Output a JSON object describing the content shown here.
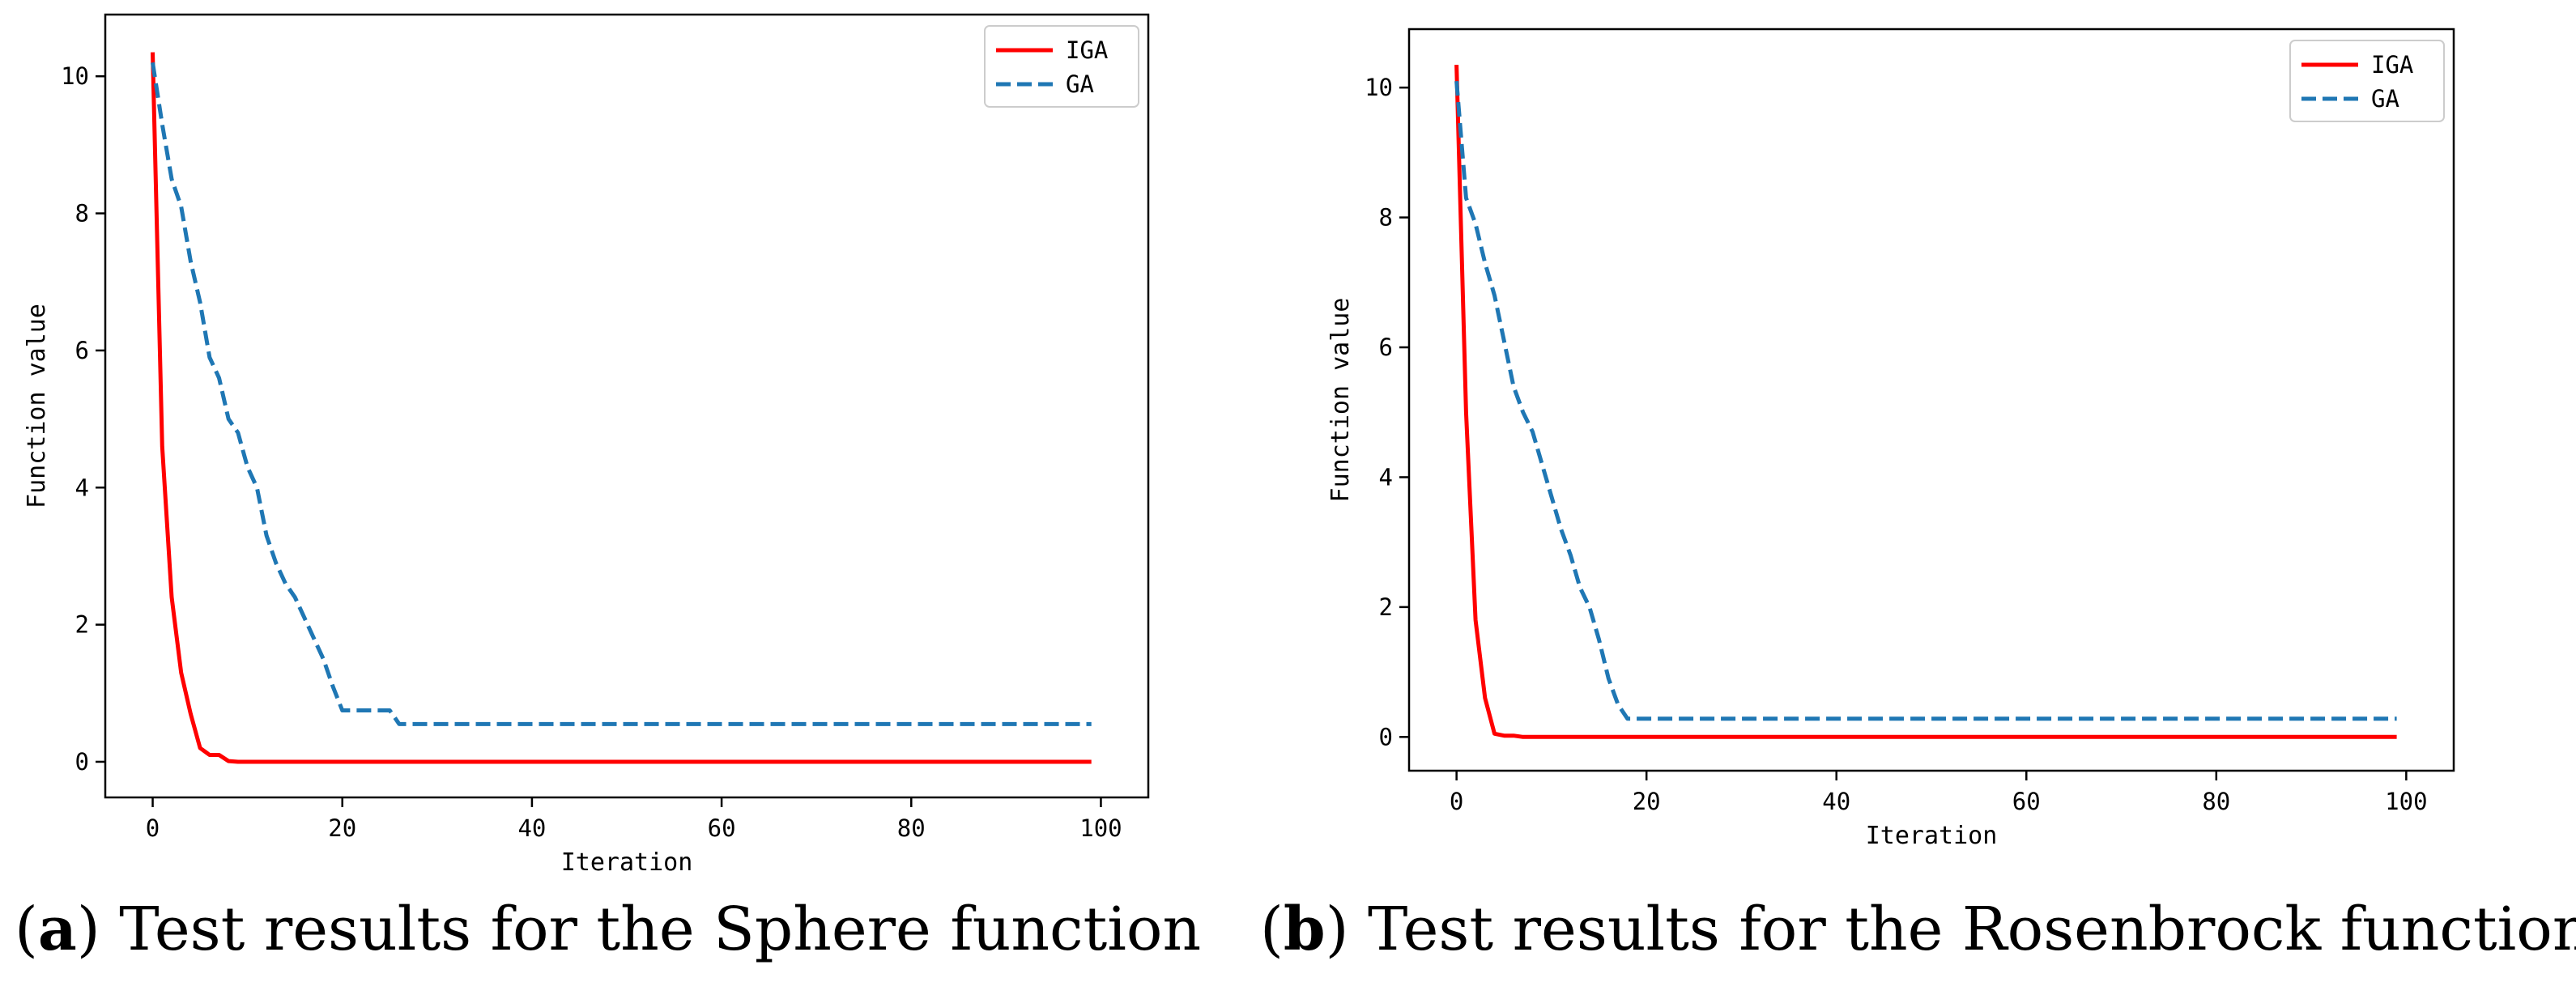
{
  "chart_data": [
    {
      "type": "line",
      "panel_label": "a",
      "caption": "Test results for the Sphere function",
      "title": "",
      "xlabel": "Iteration",
      "ylabel": "Function value",
      "xlim": [
        -5,
        105
      ],
      "ylim": [
        -0.52,
        10.9
      ],
      "xticks": [
        0,
        20,
        40,
        60,
        80,
        100
      ],
      "yticks": [
        0,
        2,
        4,
        6,
        8,
        10
      ],
      "legend_position": "top-right",
      "series": [
        {
          "name": "IGA",
          "color": "#ff0000",
          "style": "solid",
          "x": [
            0,
            1,
            2,
            3,
            4,
            5,
            6,
            7,
            8,
            9,
            99
          ],
          "values": [
            10.35,
            4.6,
            2.4,
            1.3,
            0.7,
            0.2,
            0.1,
            0.1,
            0.01,
            0.0,
            0.0
          ]
        },
        {
          "name": "GA",
          "color": "#1f77b4",
          "style": "dashed",
          "x": [
            0,
            1,
            2,
            3,
            4,
            5,
            6,
            7,
            8,
            9,
            10,
            11,
            12,
            13,
            14,
            15,
            16,
            17,
            18,
            19,
            20,
            21,
            22,
            25,
            26,
            99
          ],
          "values": [
            10.2,
            9.3,
            8.5,
            8.1,
            7.3,
            6.7,
            5.9,
            5.6,
            5.0,
            4.8,
            4.3,
            4.0,
            3.3,
            2.9,
            2.6,
            2.4,
            2.1,
            1.8,
            1.5,
            1.1,
            0.75,
            0.75,
            0.75,
            0.75,
            0.55,
            0.55
          ]
        }
      ]
    },
    {
      "type": "line",
      "panel_label": "b",
      "caption": "Test results for the Rosenbrock function",
      "title": "",
      "xlabel": "Iteration",
      "ylabel": "Function value",
      "xlim": [
        -5,
        105
      ],
      "ylim": [
        -0.52,
        10.9
      ],
      "xticks": [
        0,
        20,
        40,
        60,
        80,
        100
      ],
      "yticks": [
        0,
        2,
        4,
        6,
        8,
        10
      ],
      "legend_position": "top-right",
      "series": [
        {
          "name": "IGA",
          "color": "#ff0000",
          "style": "solid",
          "x": [
            0,
            1,
            2,
            3,
            4,
            5,
            6,
            7,
            8,
            99
          ],
          "values": [
            10.35,
            5.0,
            1.8,
            0.6,
            0.05,
            0.02,
            0.02,
            0.0,
            0.0,
            0.0
          ]
        },
        {
          "name": "GA",
          "color": "#1f77b4",
          "style": "dashed",
          "x": [
            0,
            1,
            2,
            3,
            4,
            5,
            6,
            7,
            8,
            9,
            10,
            11,
            12,
            13,
            14,
            15,
            16,
            17,
            18,
            99
          ],
          "values": [
            10.1,
            8.3,
            7.9,
            7.3,
            6.8,
            6.1,
            5.4,
            5.0,
            4.7,
            4.2,
            3.7,
            3.2,
            2.8,
            2.3,
            2.0,
            1.5,
            0.9,
            0.5,
            0.28,
            0.28
          ]
        }
      ]
    }
  ]
}
